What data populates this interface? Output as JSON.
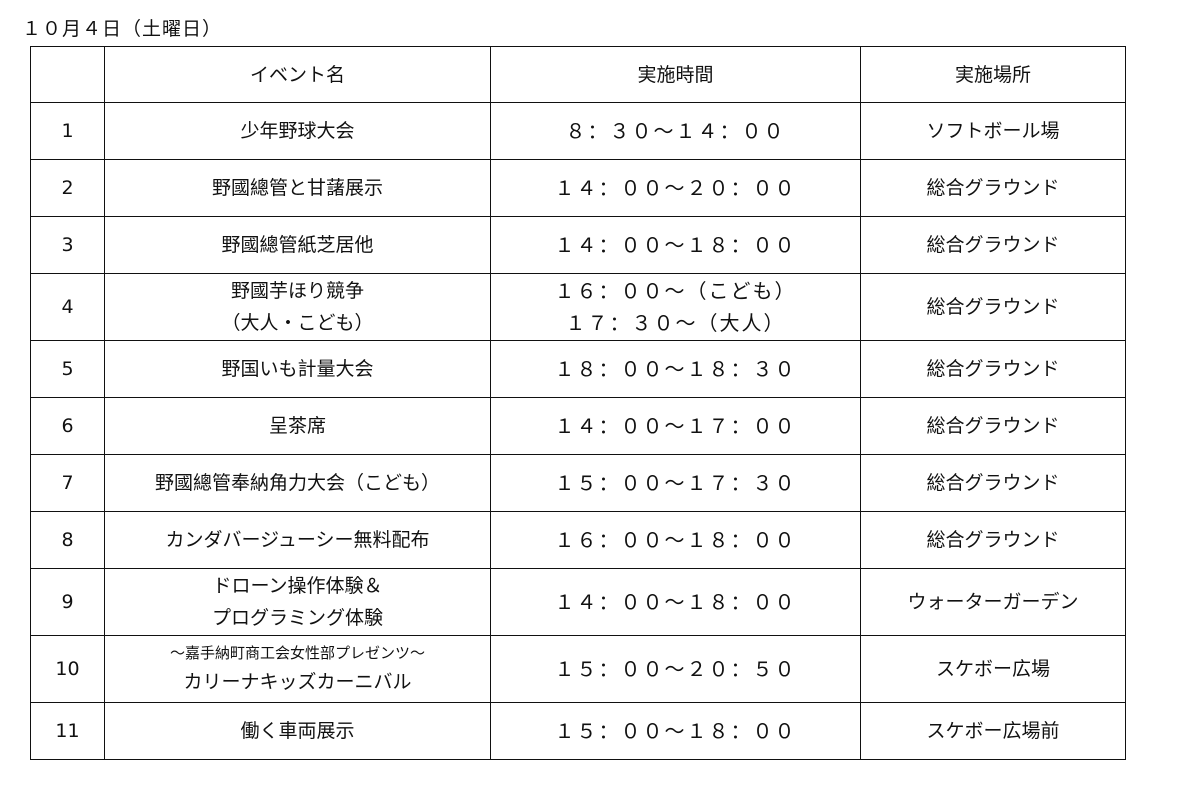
{
  "title": "１０月４日（土曜日）",
  "headers": [
    "",
    "イベント名",
    "実施時間",
    "実施場所"
  ],
  "rows": [
    {
      "no": "1",
      "event": [
        "少年野球大会"
      ],
      "time": [
        "８：３０～１４：００"
      ],
      "place": "ソフトボール場"
    },
    {
      "no": "2",
      "event": [
        "野國總管と甘藷展示"
      ],
      "time": [
        "１４：００～２０：００"
      ],
      "place": "総合グラウンド"
    },
    {
      "no": "3",
      "event": [
        "野國總管紙芝居他"
      ],
      "time": [
        "１４：００～１８：００"
      ],
      "place": "総合グラウンド"
    },
    {
      "no": "4",
      "event": [
        "野國芋ほり競争",
        "（大人・こども）"
      ],
      "time": [
        "１６：００～（こども）",
        "１７：３０～（大人）"
      ],
      "place": "総合グラウンド"
    },
    {
      "no": "5",
      "event": [
        "野国いも計量大会"
      ],
      "time": [
        "１８：００～１８：３０"
      ],
      "place": "総合グラウンド"
    },
    {
      "no": "6",
      "event": [
        "呈茶席"
      ],
      "time": [
        "１４：００～１７：００"
      ],
      "place": "総合グラウンド"
    },
    {
      "no": "7",
      "event": [
        "野國總管奉納角力大会（こども）"
      ],
      "time": [
        "１５：００～１７：３０"
      ],
      "place": "総合グラウンド"
    },
    {
      "no": "8",
      "event": [
        "カンダバージューシー無料配布"
      ],
      "time": [
        "１６：００～１８：００"
      ],
      "place": "総合グラウンド"
    },
    {
      "no": "9",
      "event": [
        "ドローン操作体験＆",
        "プログラミング体験"
      ],
      "time": [
        "１４：００～１８：００"
      ],
      "place": "ウォーターガーデン"
    },
    {
      "no": "10",
      "event": [
        "～嘉手納町商工会女性部プレゼンツ～",
        "カリーナキッズカーニバル"
      ],
      "time": [
        "１５：００～２０：５０"
      ],
      "place": "スケボー広場"
    },
    {
      "no": "11",
      "event": [
        "働く車両展示"
      ],
      "time": [
        "１５：００～１８：００"
      ],
      "place": "スケボー広場前"
    }
  ]
}
